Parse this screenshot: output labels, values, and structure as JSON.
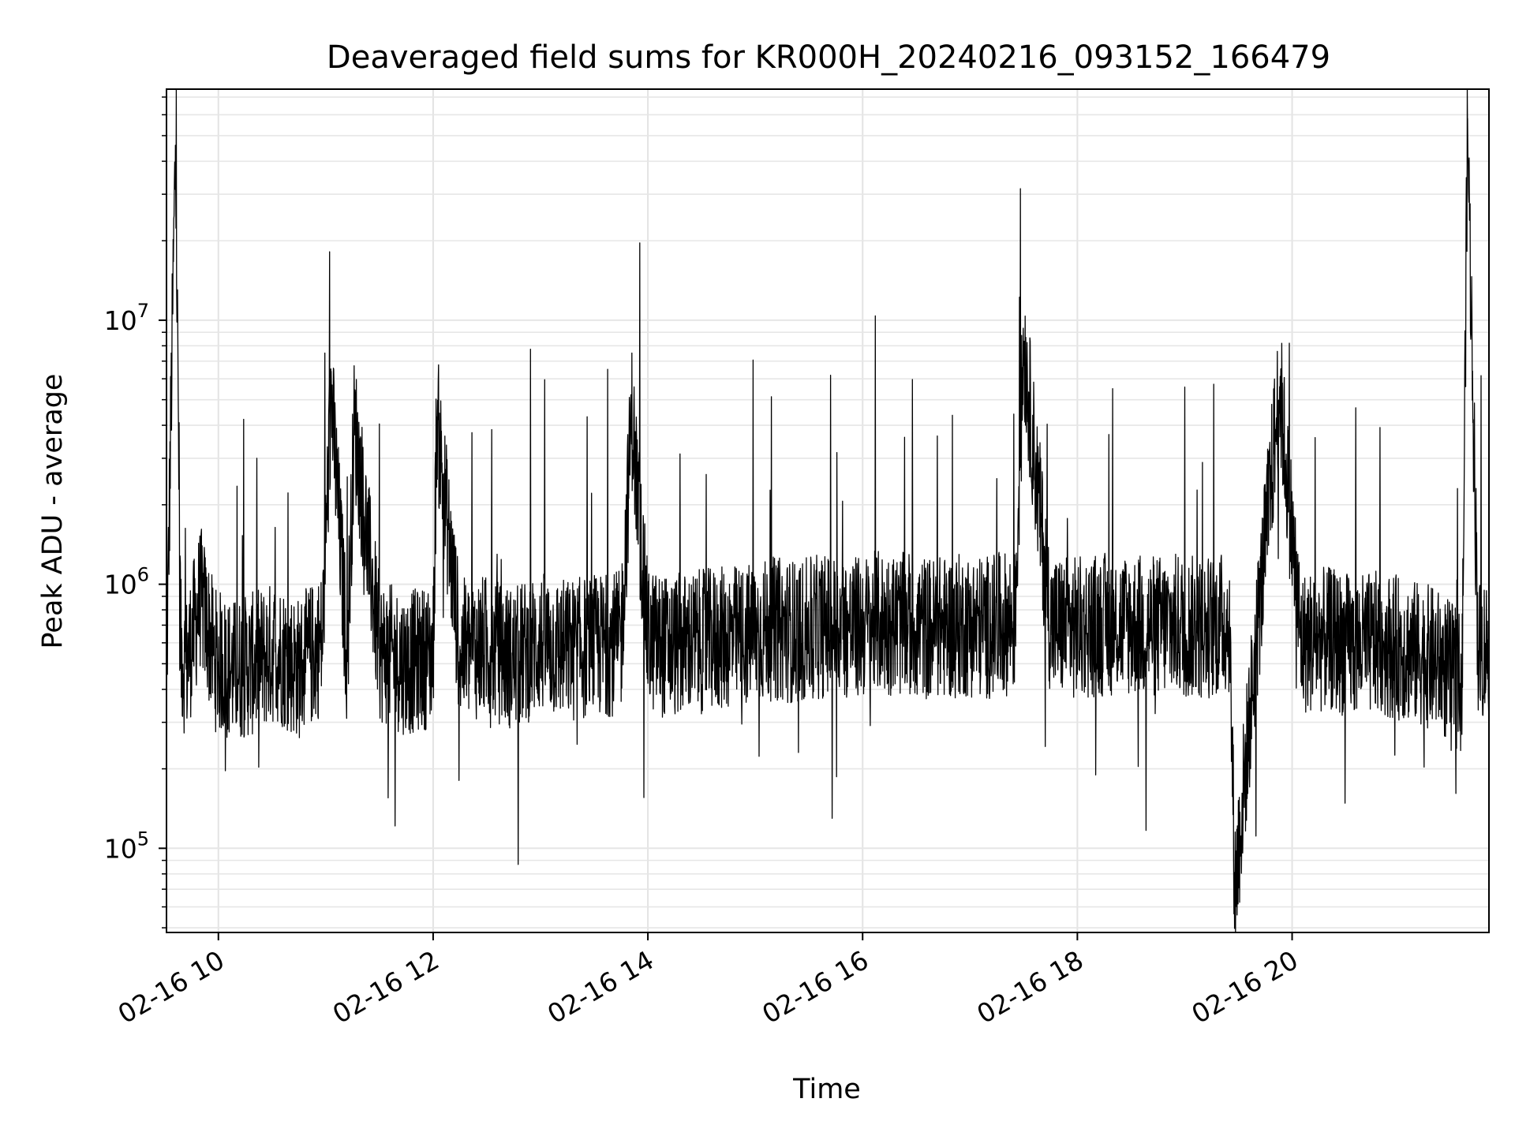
{
  "chart_data": {
    "type": "line",
    "title": "Deaveraged field sums for KR000H_20240216_093152_166479",
    "xlabel": "Time",
    "ylabel": "Peak ADU - average",
    "yscale": "log",
    "xlim": [
      "2024-02-16T09:31",
      "2024-02-16T21:50"
    ],
    "ylim": [
      48000,
      75000000
    ],
    "grid": true,
    "line_color": "#000000",
    "x_ticks": [
      {
        "value": "2024-02-16T10:00",
        "label": "02-16 10"
      },
      {
        "value": "2024-02-16T12:00",
        "label": "02-16 12"
      },
      {
        "value": "2024-02-16T14:00",
        "label": "02-16 14"
      },
      {
        "value": "2024-02-16T16:00",
        "label": "02-16 16"
      },
      {
        "value": "2024-02-16T18:00",
        "label": "02-16 18"
      },
      {
        "value": "2024-02-16T20:00",
        "label": "02-16 20"
      }
    ],
    "y_ticks": [
      {
        "value": 100000,
        "base": "10",
        "exp": "5"
      },
      {
        "value": 1000000,
        "base": "10",
        "exp": "6"
      },
      {
        "value": 10000000,
        "base": "10",
        "exp": "7"
      }
    ],
    "x": [
      "2024-02-16T09:31",
      "2024-02-16T09:36",
      "2024-02-16T09:39",
      "2024-02-16T09:42",
      "2024-02-16T09:50",
      "2024-02-16T09:58",
      "2024-02-16T10:08",
      "2024-02-16T10:20",
      "2024-02-16T10:32",
      "2024-02-16T10:45",
      "2024-02-16T10:58",
      "2024-02-16T11:03",
      "2024-02-16T11:12",
      "2024-02-16T11:16",
      "2024-02-16T11:30",
      "2024-02-16T11:45",
      "2024-02-16T12:00",
      "2024-02-16T12:02",
      "2024-02-16T12:15",
      "2024-02-16T12:30",
      "2024-02-16T12:45",
      "2024-02-16T13:00",
      "2024-02-16T13:15",
      "2024-02-16T13:30",
      "2024-02-16T13:45",
      "2024-02-16T13:51",
      "2024-02-16T14:00",
      "2024-02-16T14:10",
      "2024-02-16T14:25",
      "2024-02-16T14:40",
      "2024-02-16T14:55",
      "2024-02-16T15:10",
      "2024-02-16T15:25",
      "2024-02-16T15:40",
      "2024-02-16T15:55",
      "2024-02-16T16:10",
      "2024-02-16T16:25",
      "2024-02-16T16:40",
      "2024-02-16T16:55",
      "2024-02-16T17:10",
      "2024-02-16T17:25",
      "2024-02-16T17:30",
      "2024-02-16T17:45",
      "2024-02-16T18:00",
      "2024-02-16T18:10",
      "2024-02-16T18:25",
      "2024-02-16T18:40",
      "2024-02-16T18:55",
      "2024-02-16T19:10",
      "2024-02-16T19:25",
      "2024-02-16T19:28",
      "2024-02-16T19:40",
      "2024-02-16T19:53",
      "2024-02-16T20:05",
      "2024-02-16T20:20",
      "2024-02-16T20:35",
      "2024-02-16T20:50",
      "2024-02-16T21:05",
      "2024-02-16T21:20",
      "2024-02-16T21:35",
      "2024-02-16T21:38",
      "2024-02-16T21:44",
      "2024-02-16T21:50"
    ],
    "values": [
      420000,
      46000000,
      560000,
      480000,
      900000,
      520000,
      470000,
      500000,
      560000,
      480000,
      600000,
      5200000,
      520000,
      4100000,
      560000,
      500000,
      540000,
      4300000,
      560000,
      580000,
      520000,
      600000,
      560000,
      580000,
      600000,
      4400000,
      620000,
      580000,
      600000,
      620000,
      640000,
      680000,
      660000,
      700000,
      680000,
      720000,
      700000,
      680000,
      700000,
      690000,
      720000,
      8200000,
      700000,
      680000,
      700000,
      710000,
      690000,
      700000,
      680000,
      720000,
      70000,
      600000,
      5600000,
      600000,
      620000,
      580000,
      600000,
      560000,
      520000,
      420000,
      55000000,
      560000,
      580000
    ]
  }
}
